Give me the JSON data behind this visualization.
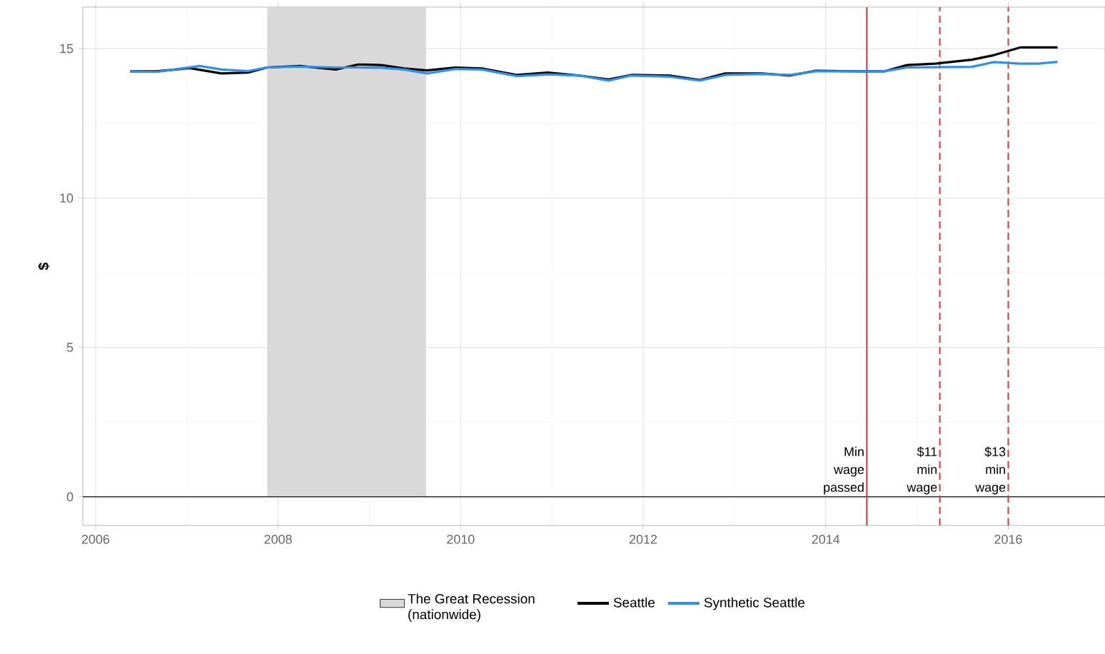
{
  "chart_data": {
    "type": "line",
    "ylabel": "$",
    "xlim": [
      2005.86,
      2017.06
    ],
    "ylim": [
      -0.96,
      16.39
    ],
    "xticks": [
      2006,
      2008,
      2010,
      2012,
      2014,
      2016
    ],
    "yticks": [
      0,
      5,
      10,
      15
    ],
    "grid": true,
    "legend": "bottom",
    "series": [
      {
        "name": "Seattle",
        "color": "#000000",
        "x": [
          2006.38,
          2006.67,
          2007.03,
          2007.38,
          2007.67,
          2007.88,
          2008.24,
          2008.63,
          2008.88,
          2009.13,
          2009.38,
          2009.63,
          2009.94,
          2010.23,
          2010.62,
          2010.95,
          2011.3,
          2011.62,
          2011.87,
          2012.29,
          2012.62,
          2012.9,
          2013.3,
          2013.61,
          2013.89,
          2014.36,
          2014.64,
          2014.89,
          2015.2,
          2015.6,
          2015.84,
          2016.13,
          2016.54
        ],
        "values": [
          14.24,
          14.24,
          14.35,
          14.17,
          14.2,
          14.37,
          14.42,
          14.3,
          14.47,
          14.45,
          14.34,
          14.27,
          14.37,
          14.34,
          14.12,
          14.2,
          14.1,
          13.97,
          14.12,
          14.1,
          13.95,
          14.17,
          14.17,
          14.1,
          14.26,
          14.24,
          14.24,
          14.45,
          14.5,
          14.63,
          14.78,
          15.04,
          15.04
        ]
      },
      {
        "name": "Synthetic Seattle",
        "color": "#2e8ff0",
        "x": [
          2006.38,
          2006.67,
          2007.14,
          2007.38,
          2007.67,
          2007.88,
          2008.24,
          2008.63,
          2008.88,
          2009.13,
          2009.38,
          2009.63,
          2009.94,
          2010.23,
          2010.62,
          2010.95,
          2011.3,
          2011.62,
          2011.87,
          2012.29,
          2012.62,
          2012.9,
          2013.3,
          2013.61,
          2013.89,
          2014.36,
          2014.64,
          2014.89,
          2015.2,
          2015.6,
          2015.84,
          2016.13,
          2016.33,
          2016.54
        ],
        "values": [
          14.24,
          14.22,
          14.42,
          14.3,
          14.25,
          14.37,
          14.4,
          14.37,
          14.37,
          14.36,
          14.3,
          14.17,
          14.32,
          14.3,
          14.08,
          14.14,
          14.1,
          13.93,
          14.1,
          14.06,
          13.93,
          14.12,
          14.15,
          14.12,
          14.24,
          14.24,
          14.24,
          14.37,
          14.38,
          14.39,
          14.55,
          14.5,
          14.5,
          14.56
        ]
      }
    ],
    "ref_lines": [
      {
        "axis": "y",
        "value": 0,
        "color": "#333333",
        "line_style": "solid"
      },
      {
        "axis": "x",
        "value": 2014.45,
        "label": "Min wage passed",
        "color": "#e0333a",
        "line_style": "solid"
      },
      {
        "axis": "x",
        "value": 2015.25,
        "label": "$11 min wage",
        "color": "#e0333a",
        "line_style": "dashed"
      },
      {
        "axis": "x",
        "value": 2016.0,
        "label": "$13 min wage",
        "color": "#e0333a",
        "line_style": "dashed"
      }
    ],
    "bands": [
      {
        "axis": "x",
        "from": 2007.88,
        "to": 2009.62,
        "label": "The Great Recession (nationwide)",
        "color": "#d9d9d9"
      }
    ]
  }
}
